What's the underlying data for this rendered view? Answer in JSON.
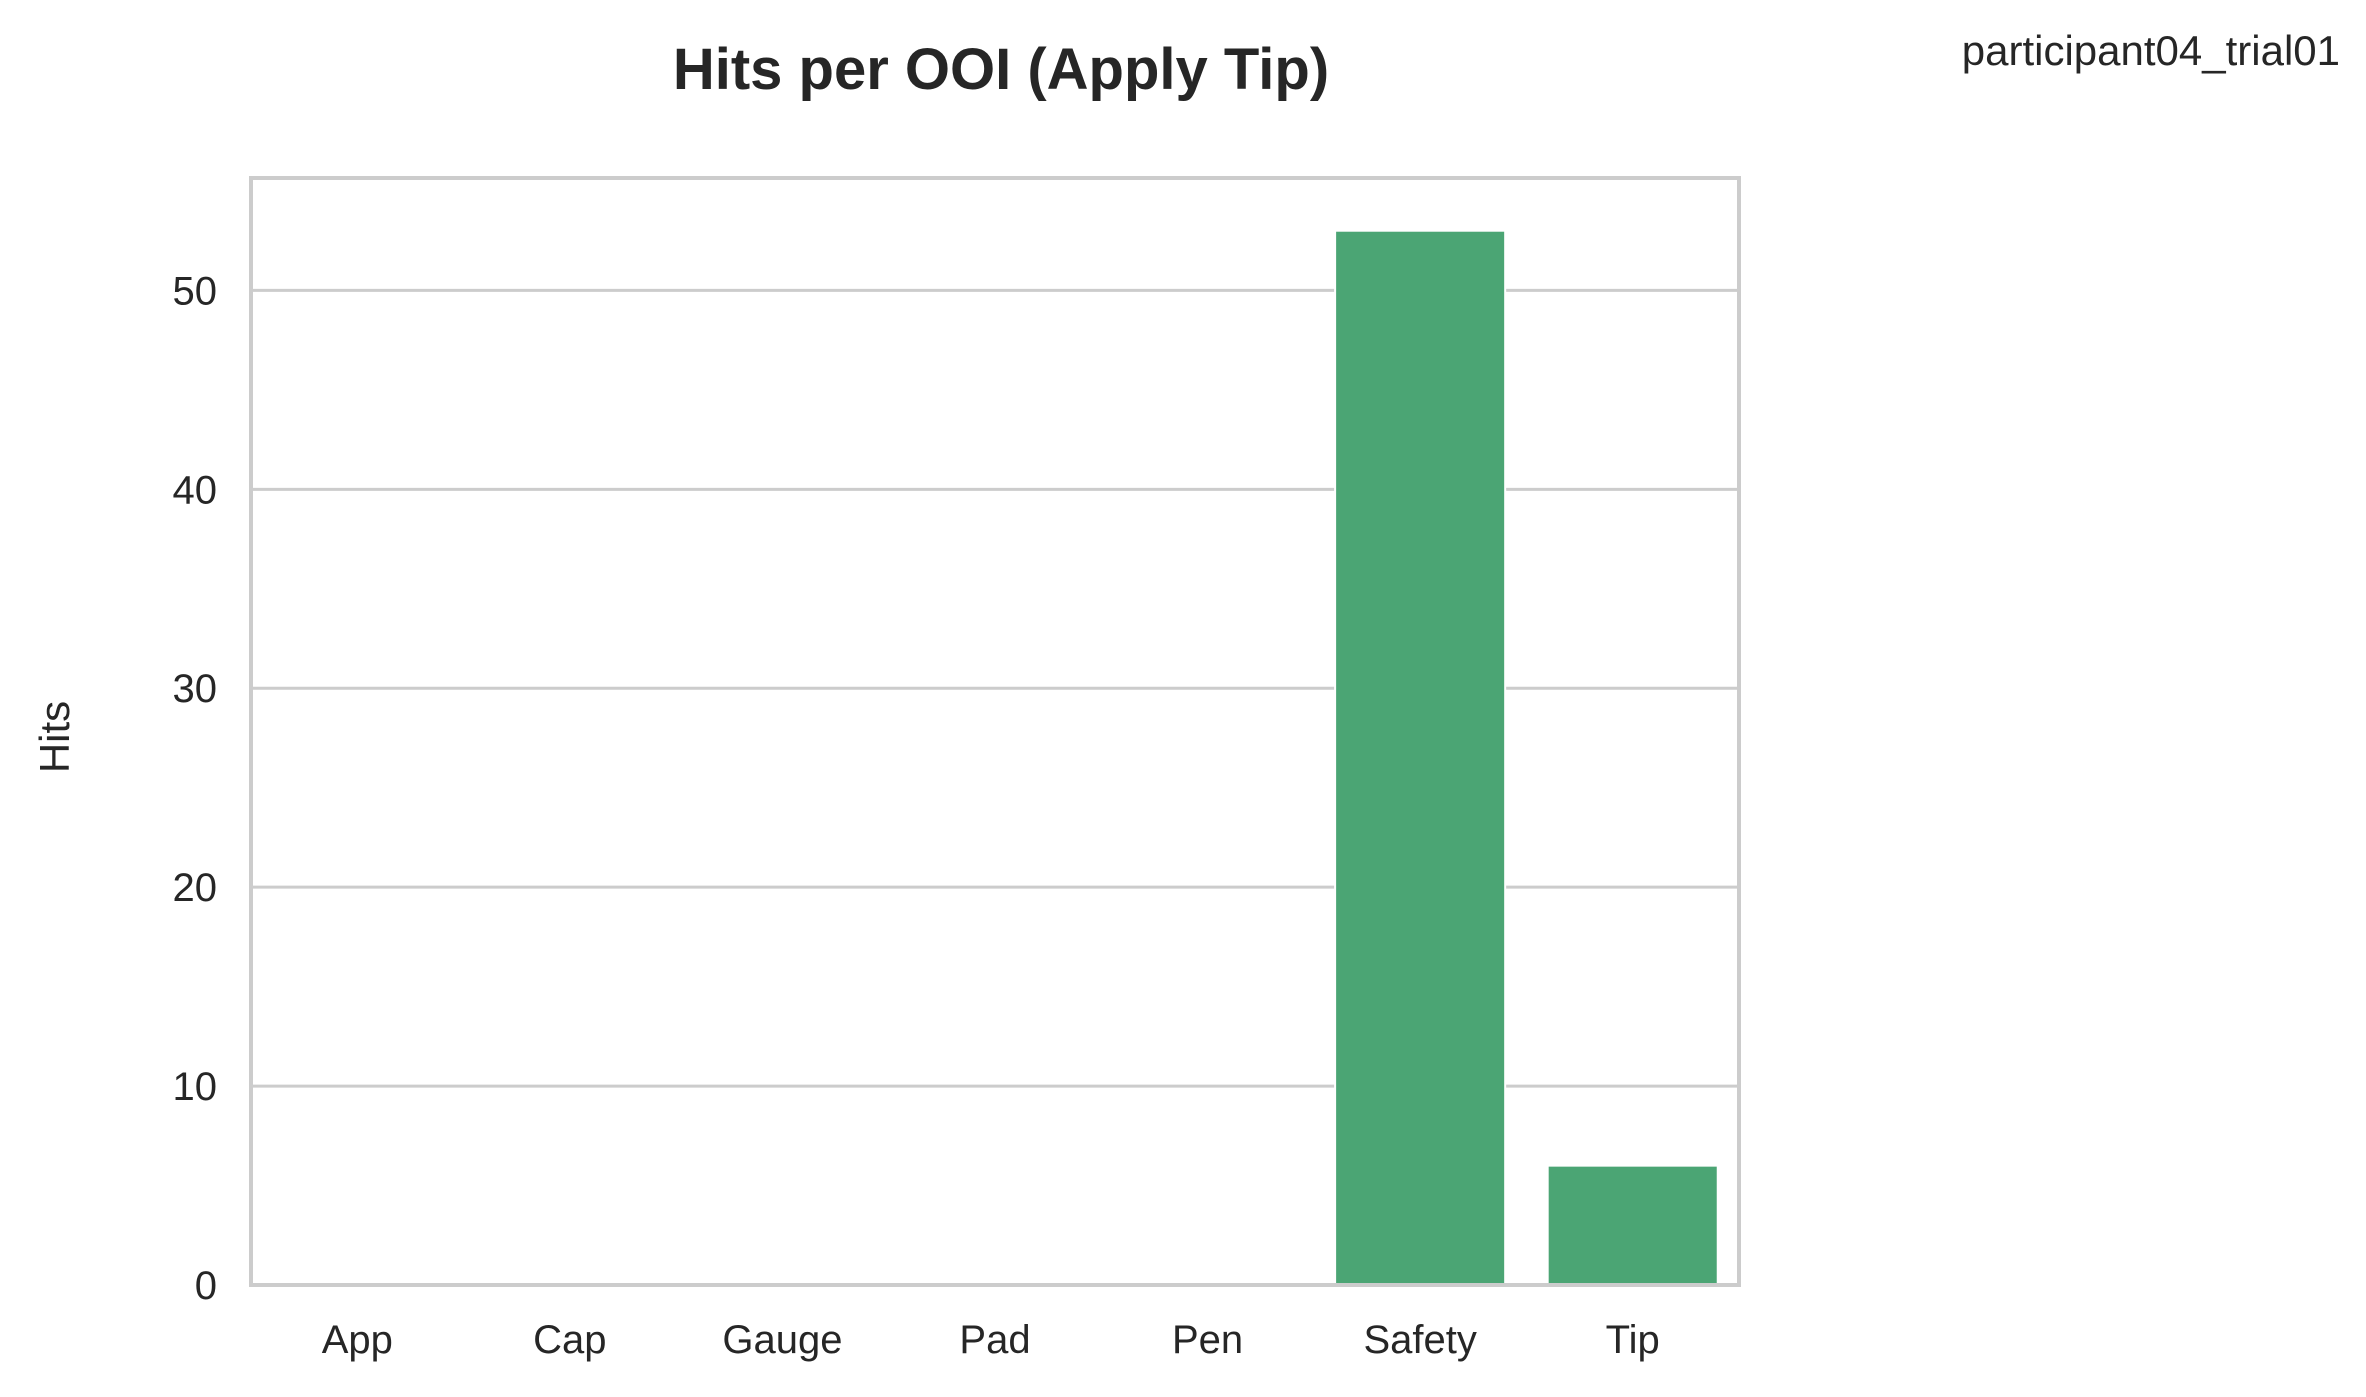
{
  "chart_data": {
    "type": "bar",
    "title": "Hits per OOI (Apply Tip)",
    "annotation": "participant04_trial01",
    "xlabel": "",
    "ylabel": "Hits",
    "categories": [
      "App",
      "Cap",
      "Gauge",
      "Pad",
      "Pen",
      "Safety",
      "Tip"
    ],
    "values": [
      0,
      0,
      0,
      0,
      0,
      53,
      6
    ],
    "ylim": [
      0,
      55.65
    ],
    "yticks": [
      0,
      10,
      20,
      30,
      40,
      50
    ],
    "grid": "horizontal",
    "legend": "none",
    "bar_color": "#4ba574",
    "grid_color": "#cccccc",
    "spine_color": "#cccccc"
  }
}
